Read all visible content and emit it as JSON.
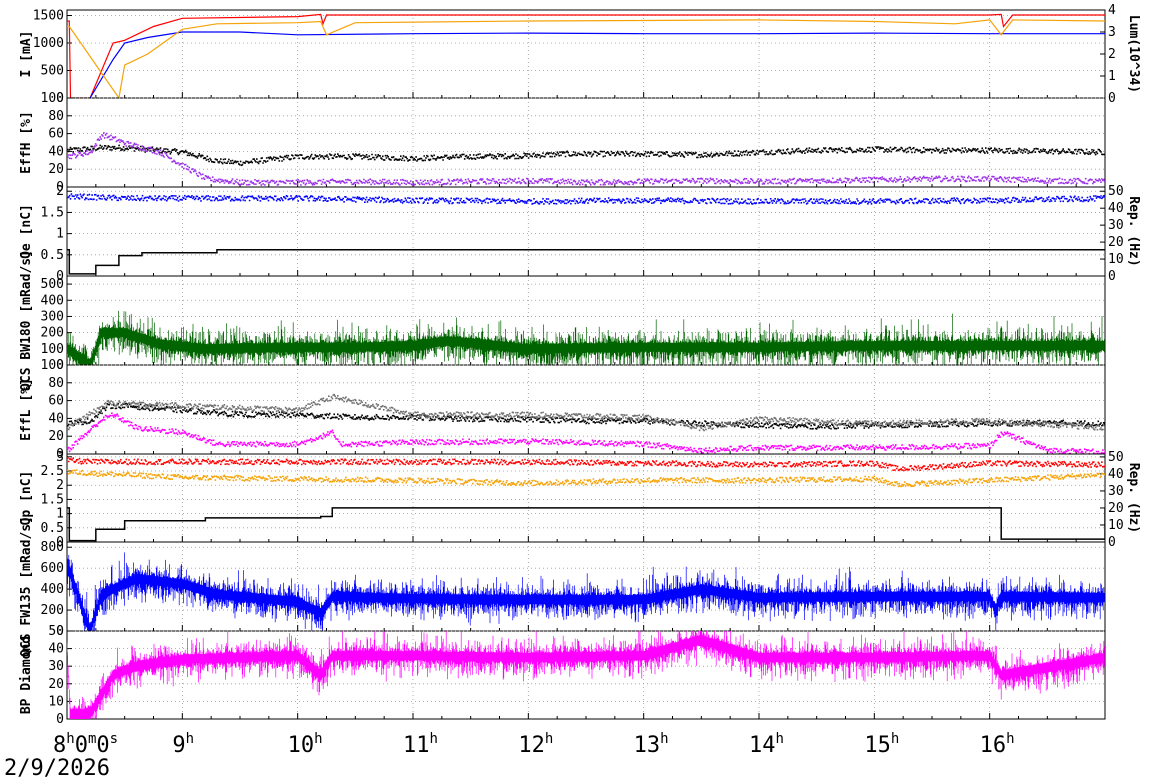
{
  "date": "2/9/2026",
  "chart_data": [
    {
      "type": "line",
      "panel": "I / Lum",
      "ylabel": "I [mA]",
      "ylim": [
        0,
        1600
      ],
      "yticks": [
        "0",
        "500",
        "1000",
        "1500"
      ],
      "y2label": "Lum(10^34)",
      "y2lim": [
        0,
        4
      ],
      "y2ticks": [
        "0",
        "1",
        "2",
        "3",
        "4"
      ],
      "series": [
        {
          "color": "#ff0000",
          "x": [
            8.0,
            8.02,
            8.03,
            8.2,
            8.4,
            8.5,
            8.75,
            9.0,
            10.0,
            10.2,
            10.22,
            10.25,
            11,
            12,
            13,
            14,
            15,
            16,
            16.1,
            16.12,
            16.2,
            17.0
          ],
          "y": [
            1400,
            1400,
            0,
            0,
            1000,
            1050,
            1300,
            1450,
            1480,
            1520,
            1350,
            1510,
            1510,
            1510,
            1510,
            1510,
            1510,
            1510,
            1520,
            1300,
            1510,
            1510
          ]
        },
        {
          "color": "#0000ff",
          "x": [
            8.2,
            8.4,
            8.5,
            8.7,
            9.0,
            9.5,
            10.0,
            11,
            12,
            13,
            14,
            15,
            16,
            17.0
          ],
          "y": [
            0,
            700,
            1000,
            1100,
            1200,
            1200,
            1150,
            1170,
            1180,
            1170,
            1170,
            1180,
            1170,
            1170
          ]
        },
        {
          "color": "#f5a30a",
          "x": [
            8.0,
            8.02,
            8.45,
            8.5,
            8.7,
            8.9,
            9.0,
            9.3,
            10.0,
            10.2,
            10.25,
            10.5,
            11,
            12,
            13,
            14,
            15,
            15.7,
            16.0,
            16.1,
            16.2,
            17.0
          ],
          "y": [
            1300,
            1300,
            0,
            600,
            800,
            1100,
            1250,
            1350,
            1370,
            1390,
            1150,
            1370,
            1380,
            1400,
            1410,
            1420,
            1390,
            1350,
            1420,
            1150,
            1420,
            1400
          ]
        }
      ]
    },
    {
      "type": "scatter",
      "panel": "EffH",
      "ylabel": "EffH [%]",
      "ylim": [
        0,
        100
      ],
      "yticks": [
        "0",
        "20",
        "40",
        "60",
        "80",
        "100"
      ],
      "series": [
        {
          "color": "#000000",
          "x": [
            8.0,
            8.3,
            8.5,
            8.8,
            9.0,
            9.3,
            9.5,
            10,
            10.5,
            11,
            11.5,
            12,
            12.3,
            13,
            13.5,
            14,
            14.5,
            15,
            15.5,
            16,
            16.5,
            17
          ],
          "y": [
            42,
            45,
            45,
            42,
            40,
            30,
            28,
            35,
            35,
            33,
            35,
            36,
            38,
            38,
            37,
            40,
            42,
            43,
            42,
            42,
            41,
            40
          ]
        },
        {
          "color": "#9b30e8",
          "x": [
            8.0,
            8.2,
            8.3,
            8.5,
            8.8,
            9.0,
            9.2,
            9.5,
            10,
            10.5,
            11,
            11.5,
            12,
            12.5,
            13,
            13.5,
            14,
            14.5,
            15,
            15.5,
            16,
            16.5,
            17
          ],
          "y": [
            35,
            40,
            60,
            50,
            40,
            25,
            10,
            6,
            6,
            7,
            6,
            7,
            8,
            6,
            7,
            8,
            7,
            8,
            9,
            10,
            10,
            8,
            7
          ]
        }
      ]
    },
    {
      "type": "scatter",
      "panel": "Qe / Rep",
      "ylabel": "Qe [nC]",
      "ylim": [
        0,
        2.1
      ],
      "yticks": [
        "0",
        "0.5",
        "1",
        "1.5",
        "2"
      ],
      "y2label": "Rep. (Hz)",
      "y2lim": [
        0,
        52.5
      ],
      "y2ticks": [
        "0",
        "10",
        "20",
        "30",
        "40",
        "50"
      ],
      "series": [
        {
          "color": "#0000ff",
          "x": [
            8.0,
            8.5,
            9,
            10,
            11,
            12,
            13,
            14,
            15,
            16,
            17
          ],
          "y": [
            1.9,
            1.85,
            1.85,
            1.85,
            1.8,
            1.78,
            1.8,
            1.78,
            1.78,
            1.8,
            1.85
          ]
        },
        {
          "color": "#000000",
          "step": true,
          "x": [
            8.0,
            8.02,
            8.25,
            8.45,
            8.65,
            9.3,
            17.0
          ],
          "y": [
            0.62,
            0.05,
            0.25,
            0.48,
            0.55,
            0.62,
            0.62
          ]
        }
      ]
    },
    {
      "type": "line",
      "panel": "QCS BW180",
      "ylabel": "QCS BW180 [mRad/s]",
      "ylim": [
        0,
        550
      ],
      "yticks": [
        "0",
        "100",
        "200",
        "300",
        "400",
        "500"
      ],
      "series": [
        {
          "color": "#006400",
          "noisy": true,
          "x": [
            8.0,
            8.2,
            8.3,
            8.5,
            8.8,
            9.2,
            10,
            10.5,
            11,
            11.3,
            12,
            13,
            14,
            15,
            16,
            17
          ],
          "y": [
            100,
            0,
            200,
            200,
            130,
            100,
            110,
            110,
            120,
            150,
            100,
            110,
            110,
            120,
            120,
            120
          ]
        }
      ]
    },
    {
      "type": "scatter",
      "panel": "EffL",
      "ylabel": "EffL [%]",
      "ylim": [
        0,
        100
      ],
      "yticks": [
        "0",
        "20",
        "40",
        "60",
        "80",
        "100"
      ],
      "series": [
        {
          "color": "#000000",
          "x": [
            8.0,
            8.2,
            8.35,
            8.5,
            9.0,
            9.5,
            10,
            10.5,
            11,
            11.5,
            12,
            12.5,
            13,
            13.5,
            14,
            14.5,
            15,
            15.5,
            16,
            16.5,
            17
          ],
          "y": [
            35,
            38,
            55,
            55,
            50,
            45,
            45,
            42,
            42,
            40,
            40,
            38,
            38,
            35,
            33,
            32,
            33,
            34,
            35,
            36,
            35
          ]
        },
        {
          "color": "#707070",
          "x": [
            8.0,
            8.35,
            9.0,
            10,
            10.3,
            11,
            12,
            13,
            13.5,
            14,
            15,
            16,
            17
          ],
          "y": [
            30,
            58,
            55,
            50,
            65,
            45,
            45,
            42,
            30,
            40,
            35,
            38,
            30
          ]
        },
        {
          "color": "#ff00ff",
          "x": [
            8.0,
            8.3,
            8.4,
            8.6,
            9.0,
            9.3,
            10,
            10.3,
            10.35,
            10.5,
            11,
            12,
            13,
            13.5,
            14,
            15,
            16,
            16.1,
            16.5,
            17
          ],
          "y": [
            5,
            40,
            45,
            30,
            25,
            12,
            12,
            25,
            12,
            12,
            14,
            15,
            12,
            5,
            8,
            8,
            10,
            25,
            5,
            3
          ]
        }
      ]
    },
    {
      "type": "scatter",
      "panel": "Qp / Rep",
      "ylabel": "Qp [nC]",
      "ylim": [
        0,
        3.1
      ],
      "yticks": [
        "0",
        "0.5",
        "1",
        "1.5",
        "2",
        "2.5",
        "3"
      ],
      "y2label": "Rep. (Hz)",
      "y2lim": [
        0,
        51.7
      ],
      "y2ticks": [
        "0",
        "10",
        "20",
        "30",
        "40",
        "50"
      ],
      "series": [
        {
          "color": "#ff0000",
          "x": [
            8.0,
            8.2,
            9,
            10,
            11,
            12,
            13,
            14,
            15,
            15.2,
            16,
            17
          ],
          "y": [
            2.9,
            2.85,
            2.85,
            2.85,
            2.85,
            2.85,
            2.8,
            2.75,
            2.8,
            2.6,
            2.8,
            2.75
          ]
        },
        {
          "color": "#f5a30a",
          "x": [
            8.0,
            8.2,
            9,
            10,
            11,
            12,
            13,
            14,
            15,
            15.2,
            16,
            17
          ],
          "y": [
            2.5,
            2.45,
            2.3,
            2.25,
            2.2,
            2.1,
            2.2,
            2.2,
            2.25,
            2.05,
            2.2,
            2.4
          ]
        },
        {
          "color": "#000000",
          "step": true,
          "x": [
            8.0,
            8.02,
            8.25,
            8.5,
            9.2,
            10.2,
            10.3,
            16.05,
            16.1,
            17.0
          ],
          "y": [
            1.2,
            0.05,
            0.45,
            0.75,
            0.85,
            0.9,
            1.2,
            1.2,
            0.1,
            1.2
          ]
        }
      ]
    },
    {
      "type": "line",
      "panel": "QCS FW135",
      "ylabel": "QCS FW135 [mRad/s]",
      "ylim": [
        0,
        850
      ],
      "yticks": [
        "0",
        "200",
        "400",
        "600",
        "800"
      ],
      "series": [
        {
          "color": "#0000ff",
          "noisy": true,
          "x": [
            8.0,
            8.2,
            8.3,
            8.6,
            9.0,
            9.3,
            10,
            10.2,
            10.3,
            11,
            12,
            13,
            13.5,
            14,
            15,
            16,
            16.05,
            16.1,
            17
          ],
          "y": [
            650,
            0,
            350,
            500,
            450,
            350,
            280,
            170,
            330,
            310,
            300,
            300,
            400,
            320,
            330,
            330,
            200,
            330,
            320
          ]
        }
      ]
    },
    {
      "type": "line",
      "panel": "BP Diamond",
      "ylabel": "BP Diamond",
      "ylim": [
        0,
        50
      ],
      "yticks": [
        "0",
        "10",
        "20",
        "30",
        "40",
        "50"
      ],
      "series": [
        {
          "color": "#ff00ff",
          "noisy": true,
          "x": [
            8.0,
            8.03,
            8.2,
            8.4,
            8.6,
            9.0,
            10,
            10.2,
            10.3,
            11,
            12,
            13,
            13.5,
            14,
            15,
            16,
            16.1,
            17
          ],
          "y": [
            40,
            3,
            3,
            25,
            30,
            34,
            36,
            25,
            36,
            36,
            35,
            36,
            45,
            35,
            35,
            36,
            25,
            35
          ]
        }
      ]
    }
  ],
  "xaxis": {
    "xlim": [
      8.0,
      17.0
    ],
    "ticks": [
      {
        "x": 8.0,
        "label": "8",
        "sup": "h",
        "extra": "0",
        "sup2": "m",
        "extra2": "0",
        "sup3": "s"
      },
      {
        "x": 9.0,
        "label": "9",
        "sup": "h"
      },
      {
        "x": 10.0,
        "label": "10",
        "sup": "h"
      },
      {
        "x": 11.0,
        "label": "11",
        "sup": "h"
      },
      {
        "x": 12.0,
        "label": "12",
        "sup": "h"
      },
      {
        "x": 13.0,
        "label": "13",
        "sup": "h"
      },
      {
        "x": 14.0,
        "label": "14",
        "sup": "h"
      },
      {
        "x": 15.0,
        "label": "15",
        "sup": "h"
      },
      {
        "x": 16.0,
        "label": "16",
        "sup": "h"
      }
    ]
  }
}
